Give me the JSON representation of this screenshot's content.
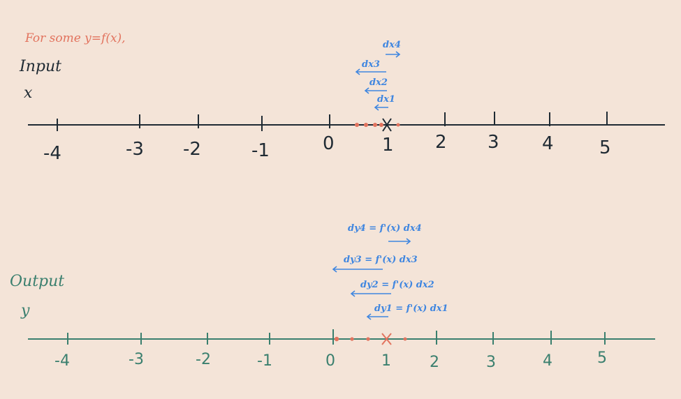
{
  "title": "For some y=f(x),",
  "input": {
    "label": "Input",
    "var": "x",
    "ticks": [
      "-4",
      "-3",
      "-2",
      "-1",
      "0",
      "1",
      "2",
      "3",
      "4",
      "5"
    ]
  },
  "output": {
    "label": "Output",
    "var": "y",
    "ticks": [
      "-4",
      "-3",
      "-2",
      "-1",
      "0",
      "1",
      "2",
      "3",
      "4",
      "5"
    ]
  },
  "input_nudges": [
    "dx4",
    "dx3",
    "dx2",
    "dx1"
  ],
  "output_nudges": [
    "dy4 = f'(x) dx4",
    "dy3 = f'(x) dx3",
    "dy2 = f'(x) dx2",
    "dy1 = f'(x) dx1"
  ],
  "colors": {
    "input_axis": "#1f2a33",
    "output_axis": "#3a7f6e",
    "nudge": "#3f86e0",
    "points": "#e2735e",
    "background": "#f4e4d8"
  }
}
